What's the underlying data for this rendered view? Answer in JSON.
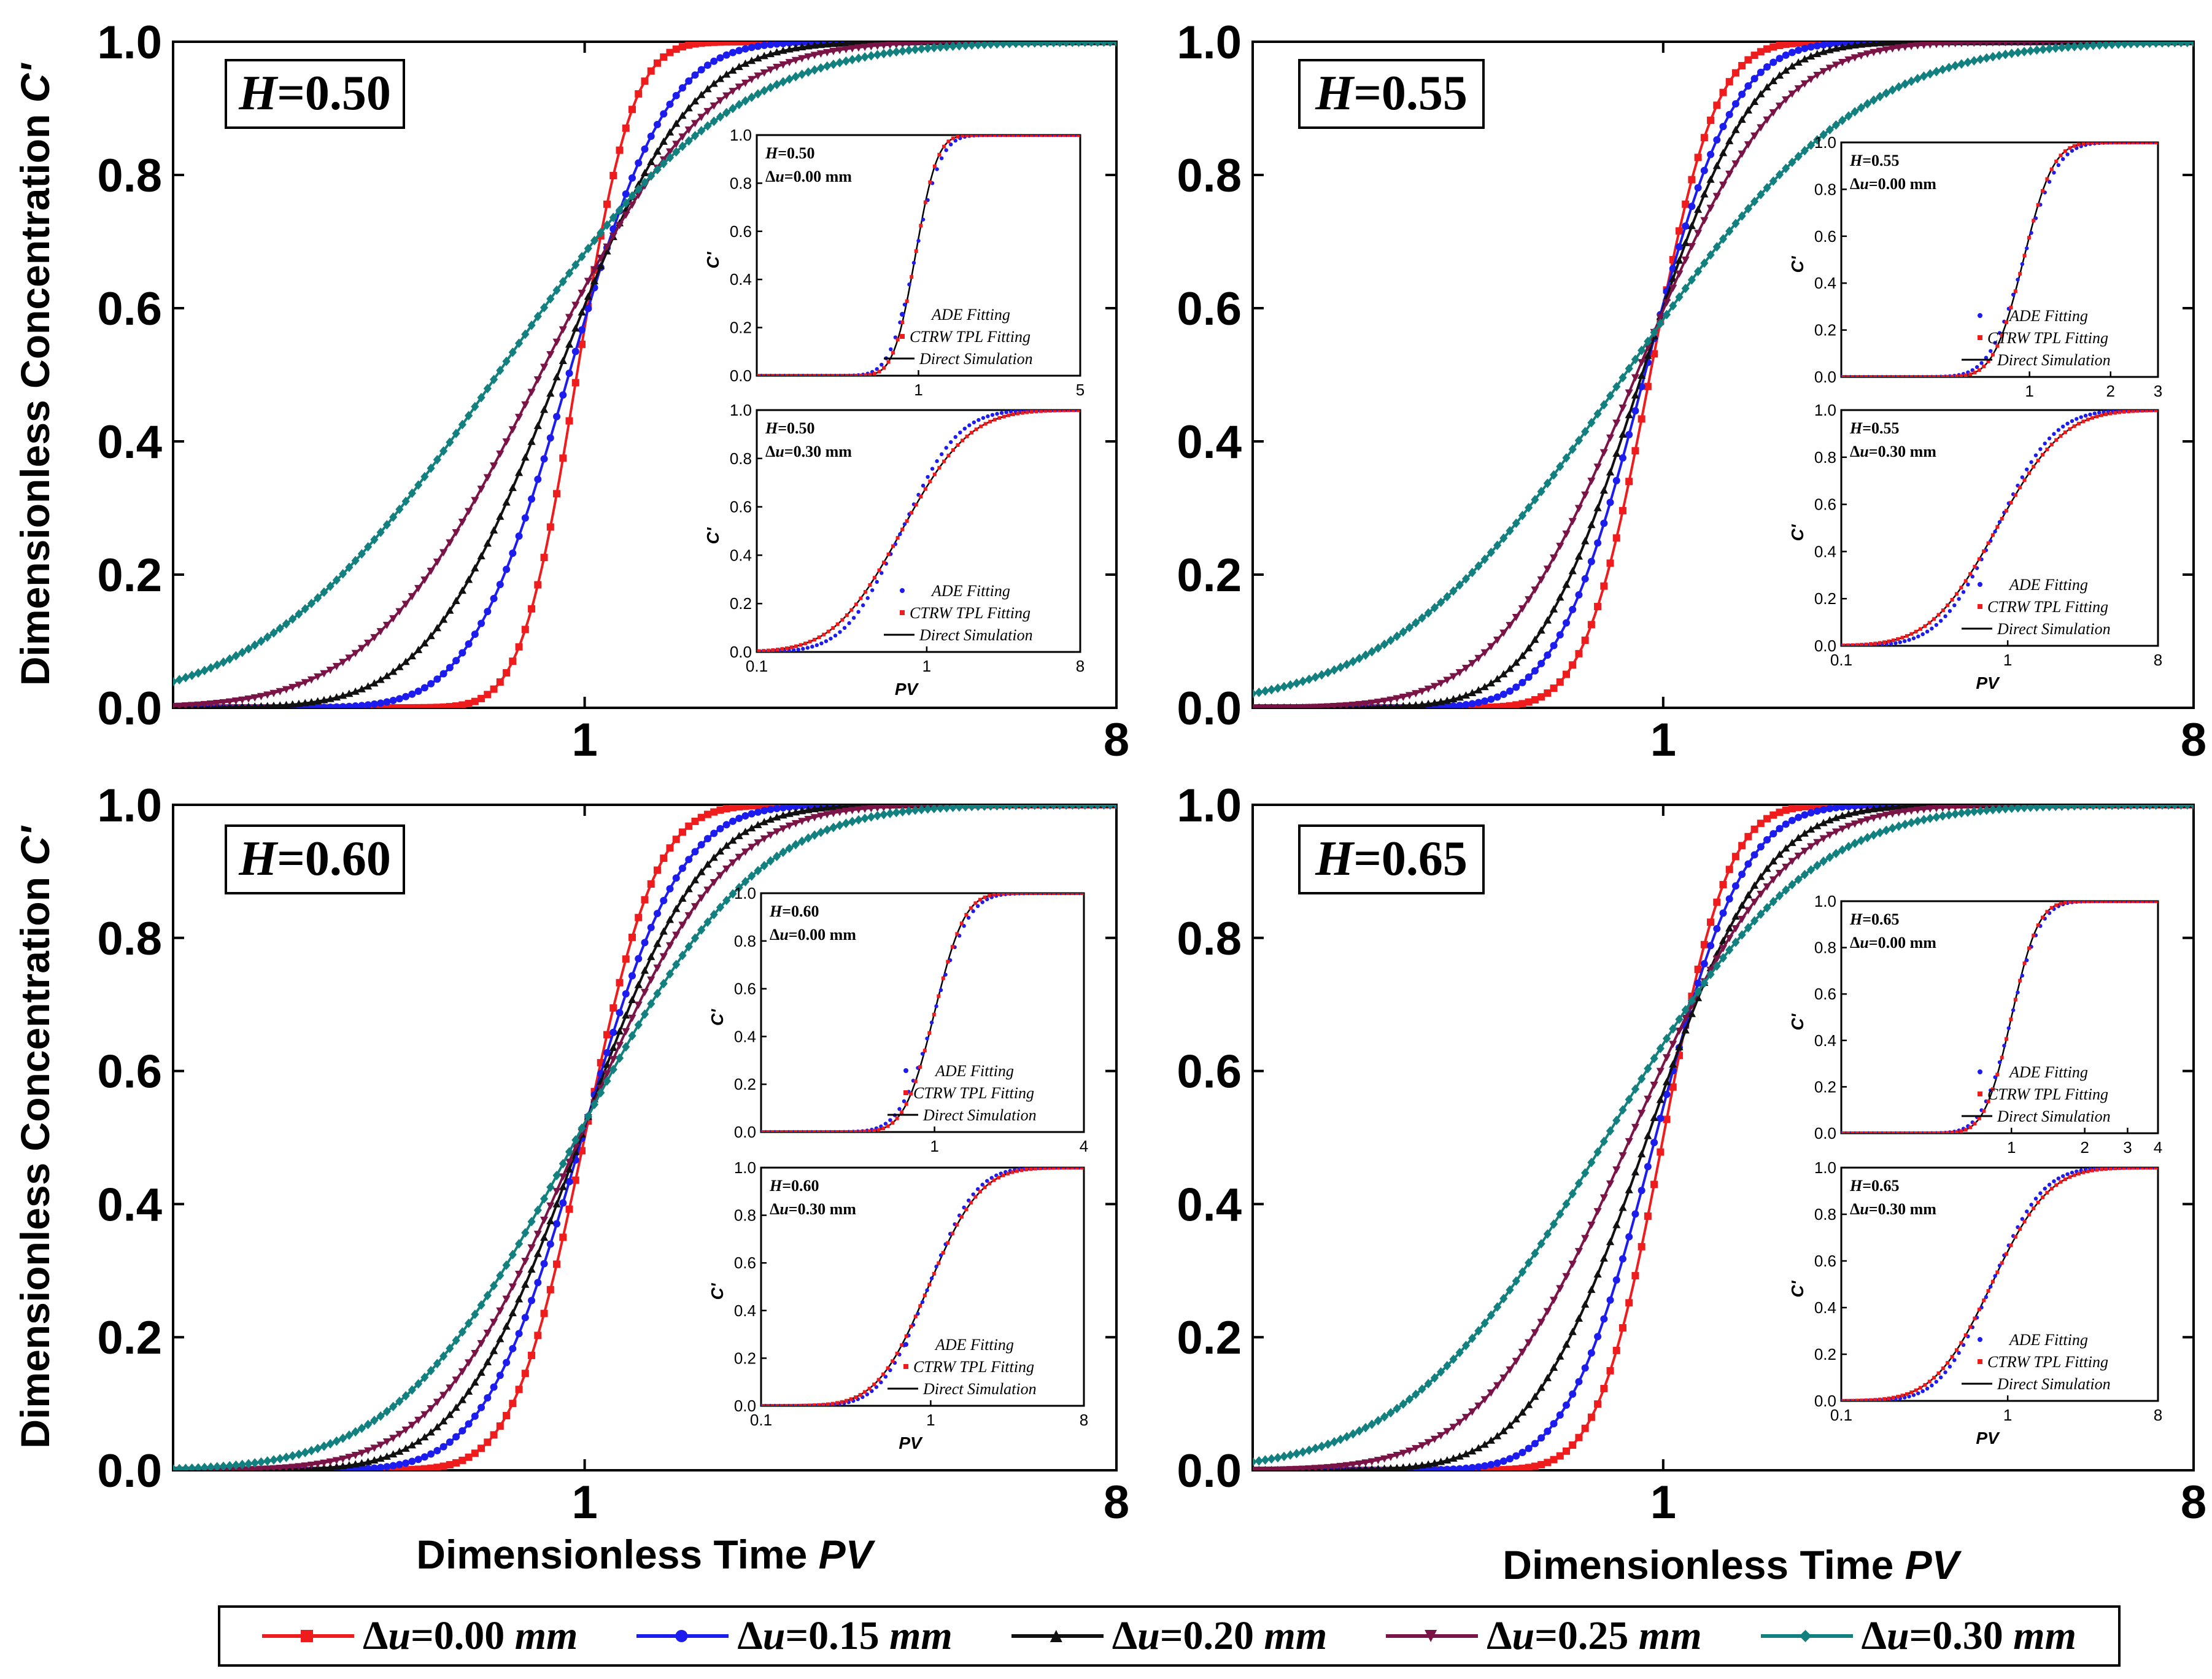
{
  "figure": {
    "y_axis_label": "Dimensionless Concentration",
    "y_axis_symbol": "C'",
    "x_axis_label": "Dimensionless Time",
    "x_axis_symbol": "PV",
    "y_ticks": [
      "0.0",
      "0.2",
      "0.4",
      "0.6",
      "0.8",
      "1.0"
    ],
    "x_ticks": [
      "1",
      "8"
    ],
    "colors": {
      "du000": "#ee1c1c",
      "du015": "#1c1cee",
      "du020": "#111111",
      "du025": "#7a1446",
      "du030": "#138080"
    }
  },
  "legend": {
    "symbol": "Δ",
    "var": "u",
    "unit": "mm",
    "items": [
      {
        "key": "du000",
        "value": "=0.00 ",
        "color": "#ee1c1c",
        "marker": "square"
      },
      {
        "key": "du015",
        "value": "=0.15 ",
        "color": "#1c1cee",
        "marker": "circle"
      },
      {
        "key": "du020",
        "value": "=0.20 ",
        "color": "#111111",
        "marker": "triangle-up"
      },
      {
        "key": "du025",
        "value": "=0.25 ",
        "color": "#7a1446",
        "marker": "triangle-down"
      },
      {
        "key": "du030",
        "value": "=0.30 ",
        "color": "#138080",
        "marker": "diamond"
      }
    ]
  },
  "inset_common": {
    "y_label": "C'",
    "x_label": "PV",
    "y_ticks": [
      "0.0",
      "0.2",
      "0.4",
      "0.6",
      "0.8",
      "1.0"
    ],
    "legend": [
      "ADE Fitting",
      "CTRW TPL Fitting",
      "Direct Simulation"
    ],
    "ade_color": "#1c1cee",
    "ctrw_color": "#ee1c1c",
    "sim_color": "#000000"
  },
  "chart_data": [
    {
      "type": "line",
      "panel": "H=0.50",
      "label": "H=0.50",
      "xscale": "log",
      "xlim": [
        0.2,
        8
      ],
      "ylim": [
        0,
        1
      ],
      "x_ticks": [
        1,
        8
      ],
      "xlabel": "",
      "ylabel": "Dimensionless Concentration C'",
      "series": [
        {
          "name": "Δu=0.00 mm",
          "key": "du000",
          "marker": "square",
          "median": 0.97,
          "sigma": 0.17,
          "values_at": {
            "x": [
              0.7,
              0.9,
              1.0,
              1.2,
              1.5,
              2.0
            ],
            "y": [
              0.0,
              0.3,
              0.57,
              0.88,
              0.99,
              1.0
            ]
          }
        },
        {
          "name": "Δu=0.15 mm",
          "key": "du015",
          "marker": "circle",
          "median": 0.94,
          "sigma": 0.3,
          "values_at": {
            "x": [
              0.5,
              0.8,
              1.0,
              1.5,
              2.5
            ],
            "y": [
              0.02,
              0.3,
              0.58,
              0.9,
              0.99
            ]
          }
        },
        {
          "name": "Δu=0.20 mm",
          "key": "du020",
          "marker": "triangle-up",
          "median": 0.9,
          "sigma": 0.4,
          "values_at": {
            "x": [
              0.5,
              0.8,
              1.0,
              1.5,
              3.0
            ],
            "y": [
              0.08,
              0.4,
              0.6,
              0.86,
              0.99
            ]
          }
        },
        {
          "name": "Δu=0.25 mm",
          "key": "du025",
          "marker": "triangle-down",
          "median": 0.84,
          "sigma": 0.52,
          "values_at": {
            "x": [
              0.5,
              0.8,
              1.0,
              1.5,
              3.0
            ],
            "y": [
              0.16,
              0.46,
              0.63,
              0.84,
              0.98
            ]
          }
        },
        {
          "name": "Δu=0.30 mm",
          "key": "du030",
          "marker": "diamond",
          "median": 0.71,
          "sigma": 0.72,
          "values_at": {
            "x": [
              0.2,
              0.5,
              1.0,
              2.0,
              5.0
            ],
            "y": [
              0.01,
              0.32,
              0.7,
              0.91,
              1.0
            ]
          }
        }
      ],
      "insets": [
        {
          "H": "0.50",
          "du": "0.00",
          "xlim": [
            0.2,
            5
          ],
          "x_ticks": [
            1,
            5
          ],
          "ade": {
            "median": 0.97,
            "sigma": 0.2
          },
          "ctrw": {
            "median": 0.97,
            "sigma": 0.17
          },
          "sim": {
            "median": 0.97,
            "sigma": 0.17
          }
        },
        {
          "H": "0.50",
          "du": "0.30",
          "xlim": [
            0.1,
            8
          ],
          "x_ticks": [
            0.1,
            1,
            8
          ],
          "ade": {
            "median": 0.71,
            "sigma": 0.6
          },
          "ctrw": {
            "median": 0.71,
            "sigma": 0.72
          },
          "sim": {
            "median": 0.71,
            "sigma": 0.72
          }
        }
      ]
    },
    {
      "type": "line",
      "panel": "H=0.55",
      "label": "H=0.55",
      "xscale": "log",
      "xlim": [
        0.2,
        8
      ],
      "ylim": [
        0,
        1
      ],
      "x_ticks": [
        1,
        8
      ],
      "xlabel": "",
      "ylabel": "",
      "series": [
        {
          "name": "Δu=0.00 mm",
          "key": "du000",
          "marker": "square",
          "median": 0.95,
          "sigma": 0.2
        },
        {
          "name": "Δu=0.15 mm",
          "key": "du015",
          "marker": "circle",
          "median": 0.93,
          "sigma": 0.27
        },
        {
          "name": "Δu=0.20 mm",
          "key": "du020",
          "marker": "triangle-up",
          "median": 0.92,
          "sigma": 0.33
        },
        {
          "name": "Δu=0.25 mm",
          "key": "du025",
          "marker": "triangle-down",
          "median": 0.9,
          "sigma": 0.43
        },
        {
          "name": "Δu=0.30 mm",
          "key": "du030",
          "marker": "diamond",
          "median": 0.86,
          "sigma": 0.72
        }
      ],
      "insets": [
        {
          "H": "0.55",
          "du": "0.00",
          "xlim": [
            0.2,
            3
          ],
          "x_ticks": [
            1,
            2,
            3
          ],
          "ade": {
            "median": 0.95,
            "sigma": 0.23
          },
          "ctrw": {
            "median": 0.95,
            "sigma": 0.2
          },
          "sim": {
            "median": 0.95,
            "sigma": 0.2
          }
        },
        {
          "H": "0.55",
          "du": "0.30",
          "xlim": [
            0.1,
            8
          ],
          "x_ticks": [
            0.1,
            1,
            8
          ],
          "ade": {
            "median": 0.86,
            "sigma": 0.62
          },
          "ctrw": {
            "median": 0.86,
            "sigma": 0.72
          },
          "sim": {
            "median": 0.86,
            "sigma": 0.72
          }
        }
      ]
    },
    {
      "type": "line",
      "panel": "H=0.60",
      "label": "H=0.60",
      "xscale": "log",
      "xlim": [
        0.2,
        8
      ],
      "ylim": [
        0,
        1
      ],
      "x_ticks": [
        1,
        8
      ],
      "xlabel": "Dimensionless Time PV",
      "ylabel": "Dimensionless Concentration C'",
      "series": [
        {
          "name": "Δu=0.00 mm",
          "key": "du000",
          "marker": "square",
          "median": 1.0,
          "sigma": 0.22
        },
        {
          "name": "Δu=0.15 mm",
          "key": "du015",
          "marker": "circle",
          "median": 0.99,
          "sigma": 0.3
        },
        {
          "name": "Δu=0.20 mm",
          "key": "du020",
          "marker": "triangle-up",
          "median": 0.985,
          "sigma": 0.37
        },
        {
          "name": "Δu=0.25 mm",
          "key": "du025",
          "marker": "triangle-down",
          "median": 0.98,
          "sigma": 0.44
        },
        {
          "name": "Δu=0.30 mm",
          "key": "du030",
          "marker": "diamond",
          "median": 0.97,
          "sigma": 0.55
        }
      ],
      "insets": [
        {
          "H": "0.60",
          "du": "0.00",
          "xlim": [
            0.2,
            4
          ],
          "x_ticks": [
            1,
            4
          ],
          "ade": {
            "median": 1.0,
            "sigma": 0.25
          },
          "ctrw": {
            "median": 1.0,
            "sigma": 0.22
          },
          "sim": {
            "median": 1.0,
            "sigma": 0.22
          }
        },
        {
          "H": "0.60",
          "du": "0.30",
          "xlim": [
            0.1,
            8
          ],
          "x_ticks": [
            0.1,
            1,
            8
          ],
          "ade": {
            "median": 0.97,
            "sigma": 0.5
          },
          "ctrw": {
            "median": 0.97,
            "sigma": 0.55
          },
          "sim": {
            "median": 0.97,
            "sigma": 0.55
          }
        }
      ]
    },
    {
      "type": "line",
      "panel": "H=0.65",
      "label": "H=0.65",
      "xscale": "log",
      "xlim": [
        0.2,
        8
      ],
      "ylim": [
        0,
        1
      ],
      "x_ticks": [
        1,
        8
      ],
      "xlabel": "Dimensionless Time PV",
      "ylabel": "",
      "series": [
        {
          "name": "Δu=0.00 mm",
          "key": "du000",
          "marker": "square",
          "median": 1.0,
          "sigma": 0.2
        },
        {
          "name": "Δu=0.15 mm",
          "key": "du015",
          "marker": "circle",
          "median": 0.97,
          "sigma": 0.27
        },
        {
          "name": "Δu=0.20 mm",
          "key": "du020",
          "marker": "triangle-up",
          "median": 0.94,
          "sigma": 0.36
        },
        {
          "name": "Δu=0.25 mm",
          "key": "du025",
          "marker": "triangle-down",
          "median": 0.88,
          "sigma": 0.46
        },
        {
          "name": "Δu=0.30 mm",
          "key": "du030",
          "marker": "diamond",
          "median": 0.8,
          "sigma": 0.62
        }
      ],
      "insets": [
        {
          "H": "0.65",
          "du": "0.00",
          "xlim": [
            0.2,
            4
          ],
          "x_ticks": [
            1,
            2,
            3,
            4
          ],
          "ade": {
            "median": 1.0,
            "sigma": 0.22
          },
          "ctrw": {
            "median": 1.0,
            "sigma": 0.2
          },
          "sim": {
            "median": 1.0,
            "sigma": 0.2
          }
        },
        {
          "H": "0.65",
          "du": "0.30",
          "xlim": [
            0.1,
            8
          ],
          "x_ticks": [
            0.1,
            1,
            8
          ],
          "ade": {
            "median": 0.8,
            "sigma": 0.55
          },
          "ctrw": {
            "median": 0.8,
            "sigma": 0.62
          },
          "sim": {
            "median": 0.8,
            "sigma": 0.62
          }
        }
      ]
    }
  ]
}
